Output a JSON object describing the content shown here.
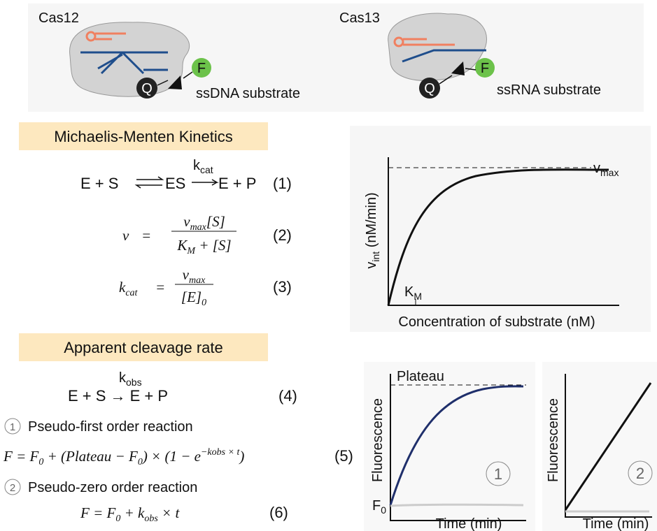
{
  "cas12": {
    "label": "Cas12",
    "fluor": "F",
    "quencher": "Q",
    "substrate": "ssDNA substrate"
  },
  "cas13": {
    "label": "Cas13",
    "fluor": "F",
    "quencher": "Q",
    "substrate": "ssRNA substrate"
  },
  "michaelis_menten": {
    "title": "Michaelis-Menten Kinetics",
    "eq1": {
      "lhs": "E + S",
      "mid": "ES",
      "rhs": "E + P",
      "k": "k",
      "k_sub": "cat",
      "number": "(1)"
    },
    "eq2": {
      "lhs": "v",
      "eq": "=",
      "num": [
        "v",
        "max",
        "[S]"
      ],
      "den": [
        "K",
        "M",
        " + [S]"
      ],
      "number": "(2)"
    },
    "eq3": {
      "lhs": [
        "k",
        "cat"
      ],
      "eq": "=",
      "num": [
        "v",
        "max"
      ],
      "den": [
        "[E]",
        "0"
      ],
      "number": "(3)"
    },
    "plot": {
      "y_label": [
        "v",
        "int",
        " (nM/min)"
      ],
      "x_label": "Concentration of substrate (nM)",
      "vmax": [
        "v",
        "max"
      ],
      "km": [
        "K",
        "M"
      ]
    }
  },
  "apparent": {
    "title": "Apparent cleavage rate",
    "eq4": {
      "k": "k",
      "k_sub": "obs",
      "text": "E + S → E + P",
      "number": "(4)"
    },
    "first_order": {
      "marker": "1",
      "label": "Pseudo-first order reaction",
      "eq": [
        "F = F",
        "0",
        " + (Plateau − F",
        "0",
        ") × (1 − e",
        "−kobs × t",
        ")"
      ],
      "number": "(5)"
    },
    "zero_order": {
      "marker": "2",
      "label": "Pseudo-zero order reaction",
      "eq": [
        "F = F",
        "0",
        " + k",
        "obs",
        " × t"
      ],
      "number": "(6)"
    },
    "plot1": {
      "y_label": "Fluorescence",
      "x_label": "Time (min)",
      "plateau": "Plateau",
      "f0": [
        "F",
        "0"
      ],
      "marker": "1"
    },
    "plot2": {
      "y_label": "Fluorescence",
      "x_label": "Time (min)",
      "marker": "2"
    }
  }
}
